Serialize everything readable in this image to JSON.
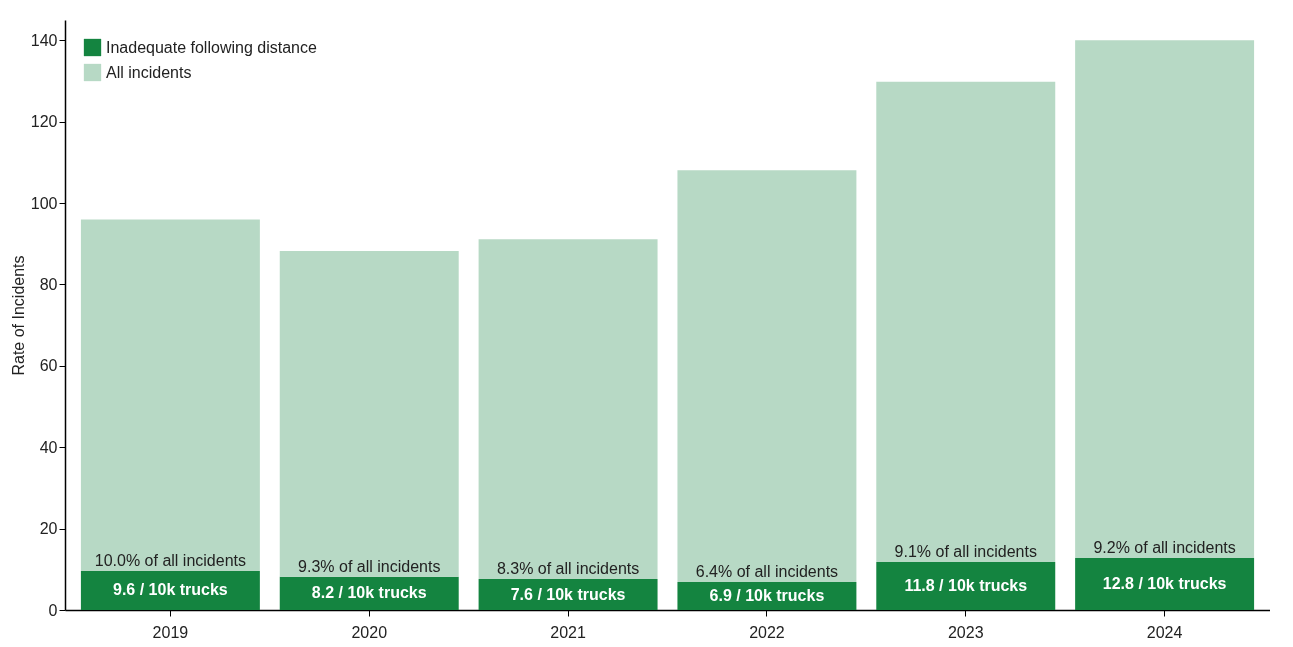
{
  "chart_data": {
    "type": "bar",
    "stacked": true,
    "ylabel": "Rate of Incidents",
    "categories": [
      "2019",
      "2020",
      "2021",
      "2022",
      "2023",
      "2024"
    ],
    "series": [
      {
        "name": "Inadequate following distance",
        "color": "#148440",
        "values": [
          9.6,
          8.2,
          7.6,
          6.9,
          11.8,
          12.8
        ],
        "value_labels": [
          "9.6 / 10k trucks",
          "8.2 / 10k trucks",
          "7.6 / 10k trucks",
          "6.9 / 10k trucks",
          "11.8 / 10k trucks",
          "12.8 / 10k trucks"
        ]
      },
      {
        "name": "All incidents",
        "color": "#b7d9c5",
        "values": [
          86.4,
          80,
          83.5,
          101.2,
          118,
          127.2
        ]
      }
    ],
    "ylim": [
      0,
      145
    ],
    "yticks": [
      0,
      20,
      40,
      60,
      80,
      100,
      120,
      140
    ],
    "grid": false,
    "legend": "top left",
    "annotations": [
      {
        "text": "10.0% of all incidents",
        "x": "2019",
        "y": 9.6
      },
      {
        "text": "9.3% of all incidents",
        "x": "2020",
        "y": 8.2
      },
      {
        "text": "8.3% of all incidents",
        "x": "2021",
        "y": 7.6
      },
      {
        "text": "6.4% of all incidents",
        "x": "2022",
        "y": 6.9
      },
      {
        "text": "9.1% of all incidents",
        "x": "2023",
        "y": 11.8
      },
      {
        "text": "9.2% of all incidents",
        "x": "2024",
        "y": 12.8
      }
    ]
  }
}
